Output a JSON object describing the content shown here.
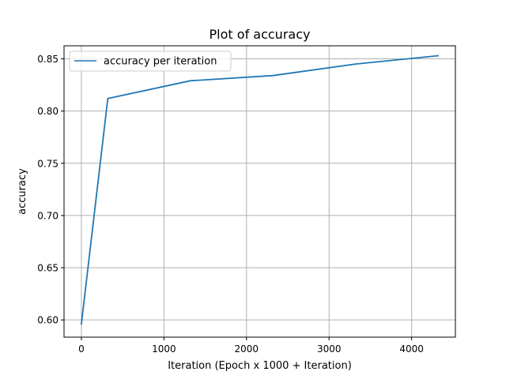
{
  "chart_data": {
    "type": "line",
    "title": "Plot of accuracy",
    "xlabel": "Iteration (Epoch x 1000 + Iteration)",
    "ylabel": "accuracy",
    "xlim": [
      -210,
      4530
    ],
    "ylim": [
      0.5835,
      0.8625
    ],
    "xticks": [
      0,
      1000,
      2000,
      3000,
      4000
    ],
    "xtick_labels": [
      "0",
      "1000",
      "2000",
      "3000",
      "4000"
    ],
    "yticks": [
      0.6,
      0.65,
      0.7,
      0.75,
      0.8,
      0.85
    ],
    "ytick_labels": [
      "0.60",
      "0.65",
      "0.70",
      "0.75",
      "0.80",
      "0.85"
    ],
    "grid": true,
    "legend_position": "top-left",
    "series": [
      {
        "name": "accuracy per iteration",
        "color": "#1f77b4",
        "x": [
          0,
          320,
          1320,
          2320,
          3320,
          4320
        ],
        "y": [
          0.596,
          0.812,
          0.829,
          0.834,
          0.845,
          0.853
        ]
      }
    ]
  }
}
